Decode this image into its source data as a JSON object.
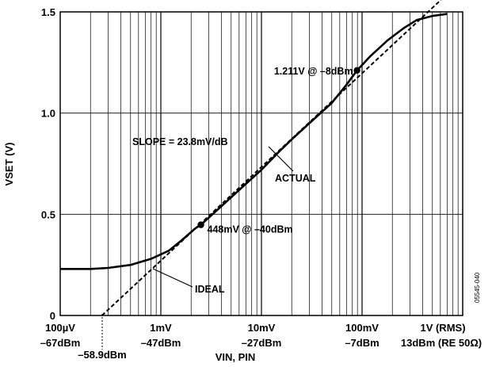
{
  "chart_data": {
    "type": "line",
    "x_scale": "log",
    "x_unit": "V (RMS)",
    "xlim": [
      0.0001,
      1
    ],
    "ylim": [
      0,
      1.5
    ],
    "ylabel": "VSET (V)",
    "xlabel": "VIN, PIN",
    "grid": true,
    "x_ticks": [
      {
        "v": 0.0001,
        "l1": "100µV",
        "l2": "–67dBm"
      },
      {
        "v": 0.001,
        "l1": "1mV",
        "l2": "–47dBm"
      },
      {
        "v": 0.01,
        "l1": "10mV",
        "l2": "–27dBm"
      },
      {
        "v": 0.1,
        "l1": "100mV",
        "l2": "–7dBm"
      },
      {
        "v": 1,
        "l1": "1V (RMS)",
        "l2": "13dBm (RE 50Ω)"
      }
    ],
    "y_ticks": [
      {
        "v": 0,
        "l": "0"
      },
      {
        "v": 0.5,
        "l": "0.5"
      },
      {
        "v": 1.0,
        "l": "1.0"
      },
      {
        "v": 1.5,
        "l": "1.5"
      }
    ],
    "series": [
      {
        "name": "ACTUAL",
        "style": "solid",
        "points": [
          [
            0.0001,
            0.23
          ],
          [
            0.0002,
            0.23
          ],
          [
            0.0003,
            0.235
          ],
          [
            0.0005,
            0.25
          ],
          [
            0.0008,
            0.28
          ],
          [
            0.0012,
            0.32
          ],
          [
            0.0016,
            0.37
          ],
          [
            0.0022,
            0.43
          ],
          [
            0.0025,
            0.448
          ],
          [
            0.004,
            0.54
          ],
          [
            0.007,
            0.65
          ],
          [
            0.01,
            0.72
          ],
          [
            0.015,
            0.81
          ],
          [
            0.02,
            0.87
          ],
          [
            0.03,
            0.95
          ],
          [
            0.05,
            1.05
          ],
          [
            0.07,
            1.14
          ],
          [
            0.089,
            1.211
          ],
          [
            0.12,
            1.28
          ],
          [
            0.18,
            1.36
          ],
          [
            0.26,
            1.42
          ],
          [
            0.35,
            1.46
          ],
          [
            0.5,
            1.48
          ],
          [
            0.7,
            1.49
          ]
        ]
      },
      {
        "name": "IDEAL",
        "style": "dashed",
        "points": [
          [
            0.00026,
            0
          ],
          [
            0.61,
            1.56
          ]
        ]
      }
    ],
    "markers": [
      {
        "x": 0.0025,
        "y": 0.448
      },
      {
        "x": 0.089,
        "y": 1.211
      }
    ],
    "annotations": {
      "point_hi": "1.211V @ –8dBm",
      "point_lo": "448mV @ –40dBm",
      "slope": "SLOPE = 23.8mV/dB",
      "actual": "ACTUAL",
      "ideal": "IDEAL",
      "intercept": "–58.9dBm"
    },
    "figure_id": "05545-040"
  }
}
